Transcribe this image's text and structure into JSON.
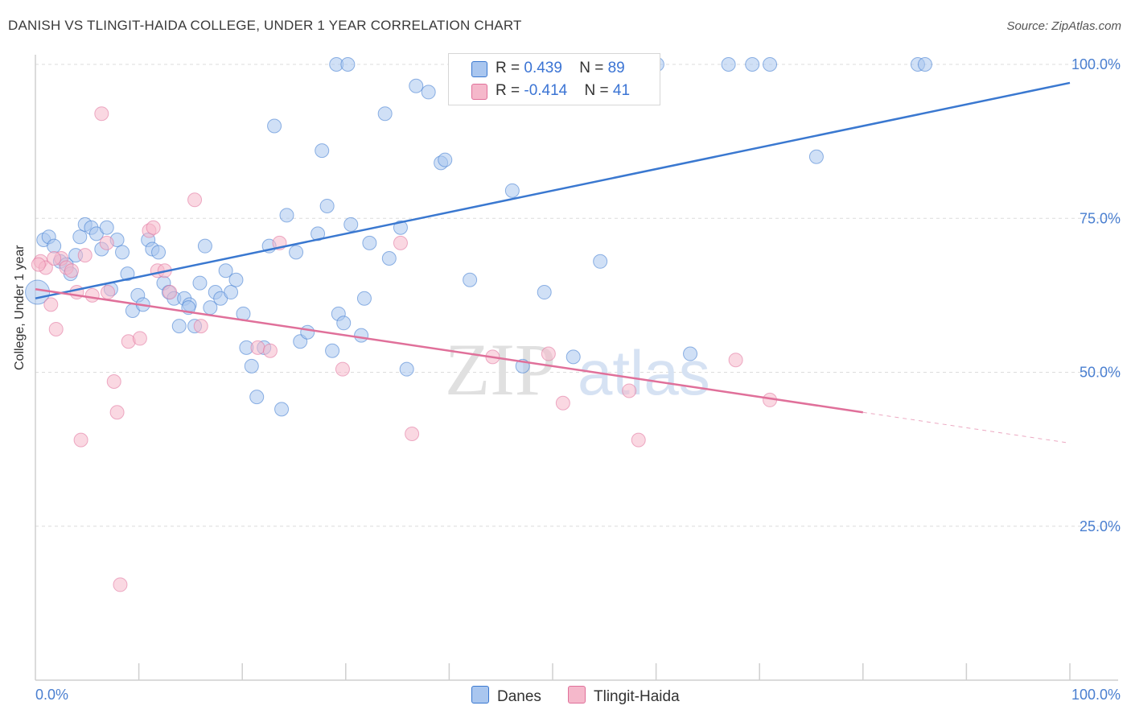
{
  "title": "DANISH VS TLINGIT-HAIDA COLLEGE, UNDER 1 YEAR CORRELATION CHART",
  "source": "Source: ZipAtlas.com",
  "watermark": {
    "zip": "ZIP",
    "atlas": "atlas"
  },
  "legend_top": {
    "rows": [
      {
        "r_label": "R = ",
        "r_value": "0.439",
        "n_label": "N = ",
        "n_value": "89",
        "color": "#a9c6ef"
      },
      {
        "r_label": "R = ",
        "r_value": "-0.414",
        "n_label": "N = ",
        "n_value": "41",
        "color": "#f5b8cb"
      }
    ]
  },
  "legend_bottom": [
    {
      "label": "Danes",
      "color": "#a9c6ef"
    },
    {
      "label": "Tlingit-Haida",
      "color": "#f5b8cb"
    }
  ],
  "chart_data": {
    "type": "scatter",
    "title": "DANISH VS TLINGIT-HAIDA COLLEGE, UNDER 1 YEAR CORRELATION CHART",
    "xlabel": "",
    "ylabel": "College, Under 1 year",
    "xlim": [
      0,
      100
    ],
    "ylim": [
      0,
      100
    ],
    "x_tick_labels": [
      "0.0%",
      "100.0%"
    ],
    "y_tick_labels": [
      "25.0%",
      "50.0%",
      "75.0%",
      "100.0%"
    ],
    "y_ticks": [
      25,
      50,
      75,
      100
    ],
    "grid": true,
    "series": [
      {
        "name": "Danes",
        "color": "#3a78d0",
        "fill": "#a9c6ef",
        "trend": {
          "x": [
            0,
            100
          ],
          "y": [
            62.0,
            97.0
          ],
          "dashed_from": null
        },
        "points": [
          [
            0.2,
            63.0
          ],
          [
            0.8,
            71.5
          ],
          [
            1.3,
            72.0
          ],
          [
            1.8,
            70.5
          ],
          [
            2.4,
            68.0
          ],
          [
            3.0,
            67.5
          ],
          [
            3.4,
            66.0
          ],
          [
            3.9,
            69.0
          ],
          [
            4.3,
            72.0
          ],
          [
            4.8,
            74.0
          ],
          [
            5.4,
            73.5
          ],
          [
            5.9,
            72.5
          ],
          [
            6.4,
            70.0
          ],
          [
            6.9,
            73.5
          ],
          [
            7.3,
            63.5
          ],
          [
            7.9,
            71.5
          ],
          [
            8.4,
            69.5
          ],
          [
            8.9,
            66.0
          ],
          [
            9.4,
            60.0
          ],
          [
            9.9,
            62.5
          ],
          [
            10.4,
            61.0
          ],
          [
            10.9,
            71.5
          ],
          [
            11.3,
            70.0
          ],
          [
            11.9,
            69.5
          ],
          [
            12.4,
            64.5
          ],
          [
            12.9,
            63.0
          ],
          [
            13.4,
            62.0
          ],
          [
            13.9,
            57.5
          ],
          [
            14.4,
            62.0
          ],
          [
            14.9,
            61.0
          ],
          [
            15.4,
            57.5
          ],
          [
            15.9,
            64.5
          ],
          [
            16.4,
            70.5
          ],
          [
            16.9,
            60.5
          ],
          [
            17.4,
            63.0
          ],
          [
            17.9,
            62.0
          ],
          [
            18.4,
            66.5
          ],
          [
            18.9,
            63.0
          ],
          [
            19.4,
            65.0
          ],
          [
            20.1,
            59.5
          ],
          [
            20.4,
            54.0
          ],
          [
            20.9,
            51.0
          ],
          [
            21.4,
            46.0
          ],
          [
            22.1,
            54.0
          ],
          [
            22.6,
            70.5
          ],
          [
            23.1,
            90.0
          ],
          [
            23.8,
            44.0
          ],
          [
            24.3,
            75.5
          ],
          [
            25.2,
            69.5
          ],
          [
            25.6,
            55.0
          ],
          [
            26.3,
            56.5
          ],
          [
            27.3,
            72.5
          ],
          [
            27.7,
            86.0
          ],
          [
            28.2,
            77.0
          ],
          [
            28.7,
            53.5
          ],
          [
            29.3,
            59.5
          ],
          [
            29.8,
            58.0
          ],
          [
            30.5,
            74.0
          ],
          [
            31.5,
            56.0
          ],
          [
            31.8,
            62.0
          ],
          [
            32.3,
            71.0
          ],
          [
            33.8,
            92.0
          ],
          [
            34.2,
            68.5
          ],
          [
            35.3,
            73.5
          ],
          [
            35.9,
            50.5
          ],
          [
            36.8,
            96.5
          ],
          [
            38.0,
            95.5
          ],
          [
            39.2,
            84.0
          ],
          [
            39.6,
            84.5
          ],
          [
            42.0,
            65.0
          ],
          [
            41.9,
            100.0
          ],
          [
            46.1,
            79.5
          ],
          [
            47.1,
            51.0
          ],
          [
            49.2,
            63.0
          ],
          [
            52.0,
            52.5
          ],
          [
            54.6,
            68.0
          ],
          [
            63.3,
            53.0
          ],
          [
            29.1,
            100.0
          ],
          [
            30.2,
            100.0
          ],
          [
            44.2,
            100.0
          ],
          [
            47.5,
            100.0
          ],
          [
            60.1,
            100.0
          ],
          [
            67.0,
            100.0
          ],
          [
            69.3,
            100.0
          ],
          [
            71.0,
            100.0
          ],
          [
            75.5,
            85.0
          ],
          [
            85.3,
            100.0
          ],
          [
            86.0,
            100.0
          ],
          [
            14.8,
            60.5
          ]
        ]
      },
      {
        "name": "Tlingit-Haida",
        "color": "#e0709a",
        "fill": "#f5b8cb",
        "trend": {
          "x": [
            0,
            100
          ],
          "y": [
            63.5,
            38.5
          ],
          "dashed_from": 80
        },
        "points": [
          [
            0.5,
            68.0
          ],
          [
            1.0,
            67.0
          ],
          [
            1.5,
            61.0
          ],
          [
            2.0,
            57.0
          ],
          [
            2.5,
            68.5
          ],
          [
            3.0,
            67.0
          ],
          [
            3.5,
            66.5
          ],
          [
            4.0,
            63.0
          ],
          [
            4.4,
            39.0
          ],
          [
            4.8,
            69.0
          ],
          [
            5.5,
            62.5
          ],
          [
            6.4,
            92.0
          ],
          [
            6.9,
            71.0
          ],
          [
            7.0,
            63.0
          ],
          [
            7.6,
            48.5
          ],
          [
            7.9,
            43.5
          ],
          [
            8.2,
            15.5
          ],
          [
            9.0,
            55.0
          ],
          [
            10.1,
            55.5
          ],
          [
            11.0,
            73.0
          ],
          [
            11.4,
            73.5
          ],
          [
            11.8,
            66.5
          ],
          [
            12.5,
            66.5
          ],
          [
            13.0,
            63.0
          ],
          [
            15.4,
            78.0
          ],
          [
            16.0,
            57.5
          ],
          [
            21.5,
            54.0
          ],
          [
            22.7,
            53.5
          ],
          [
            23.6,
            71.0
          ],
          [
            29.7,
            50.5
          ],
          [
            35.3,
            71.0
          ],
          [
            36.4,
            40.0
          ],
          [
            44.2,
            52.5
          ],
          [
            49.6,
            53.0
          ],
          [
            51.0,
            45.0
          ],
          [
            57.4,
            47.0
          ],
          [
            58.3,
            39.0
          ],
          [
            67.7,
            52.0
          ],
          [
            71.0,
            45.5
          ],
          [
            0.3,
            67.5
          ],
          [
            1.8,
            68.5
          ]
        ]
      }
    ]
  }
}
